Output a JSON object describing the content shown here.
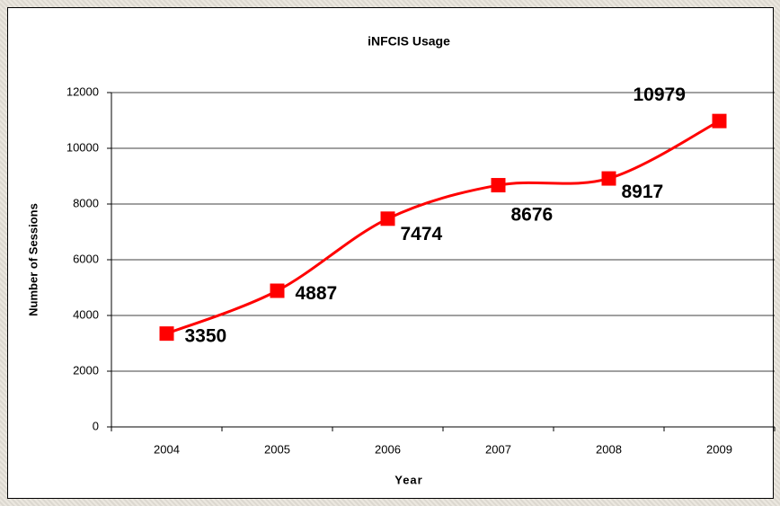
{
  "chart_data": {
    "type": "line",
    "title": "iNFCIS Usage",
    "x_label": "Year",
    "y_label": "Number of Sessions",
    "categories": [
      "2004",
      "2005",
      "2006",
      "2007",
      "2008",
      "2009"
    ],
    "values": [
      3350,
      4887,
      7474,
      8676,
      8917,
      10979
    ],
    "color": "#ff0000",
    "ylim": [
      0,
      12000
    ],
    "yticks": [
      0,
      2000,
      4000,
      6000,
      8000,
      10000,
      12000
    ],
    "grid": true,
    "smooth": true
  }
}
